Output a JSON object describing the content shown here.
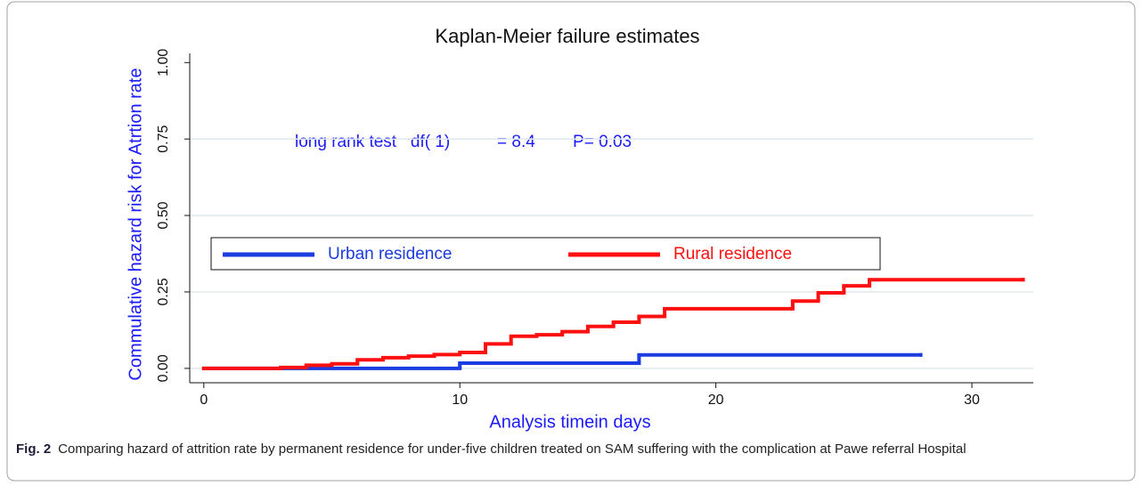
{
  "chart_data": {
    "type": "step",
    "title": "Kaplan-Meier failure estimates",
    "x_label": "Analysis timein days",
    "y_label": "Commulative hazard risk for Atrtion rate",
    "annotations": [
      "long rank test   df( 1)          = 8.4        P= 0.03"
    ],
    "xlim": [
      -0.55,
      32.4
    ],
    "xticks": [
      0,
      10,
      20,
      30
    ],
    "ylim": [
      -0.047,
      1.03
    ],
    "yticks": [
      {
        "value": 0,
        "label": "0.00"
      },
      {
        "value": 0.25,
        "label": "0.25"
      },
      {
        "value": 0.5,
        "label": "0.50"
      },
      {
        "value": 0.75,
        "label": "0.75"
      },
      {
        "value": 1,
        "label": "1.00"
      }
    ],
    "grid": true,
    "series": [
      {
        "name": "Urban residence",
        "color": "#1a3ce0",
        "x": [
          0,
          10,
          17,
          28
        ],
        "values": [
          0,
          0.017,
          0.044,
          0.044
        ]
      },
      {
        "name": "Rural residence",
        "color": "#ff1010",
        "x": [
          0,
          3,
          4,
          5,
          6,
          7,
          8,
          9,
          10,
          11,
          12,
          13,
          14,
          15,
          16,
          17,
          18,
          23,
          24,
          25,
          26,
          32
        ],
        "values": [
          0,
          0.003,
          0.01,
          0.015,
          0.028,
          0.035,
          0.04,
          0.045,
          0.052,
          0.08,
          0.105,
          0.11,
          0.12,
          0.137,
          0.151,
          0.17,
          0.195,
          0.22,
          0.247,
          0.27,
          0.29,
          0.29
        ]
      }
    ]
  },
  "caption": {
    "label": "Fig. 2",
    "text": "Comparing hazard of attrition rate by permanent residence for under-five children treated on SAM suffering with the complication at Pawe referral Hospital"
  }
}
